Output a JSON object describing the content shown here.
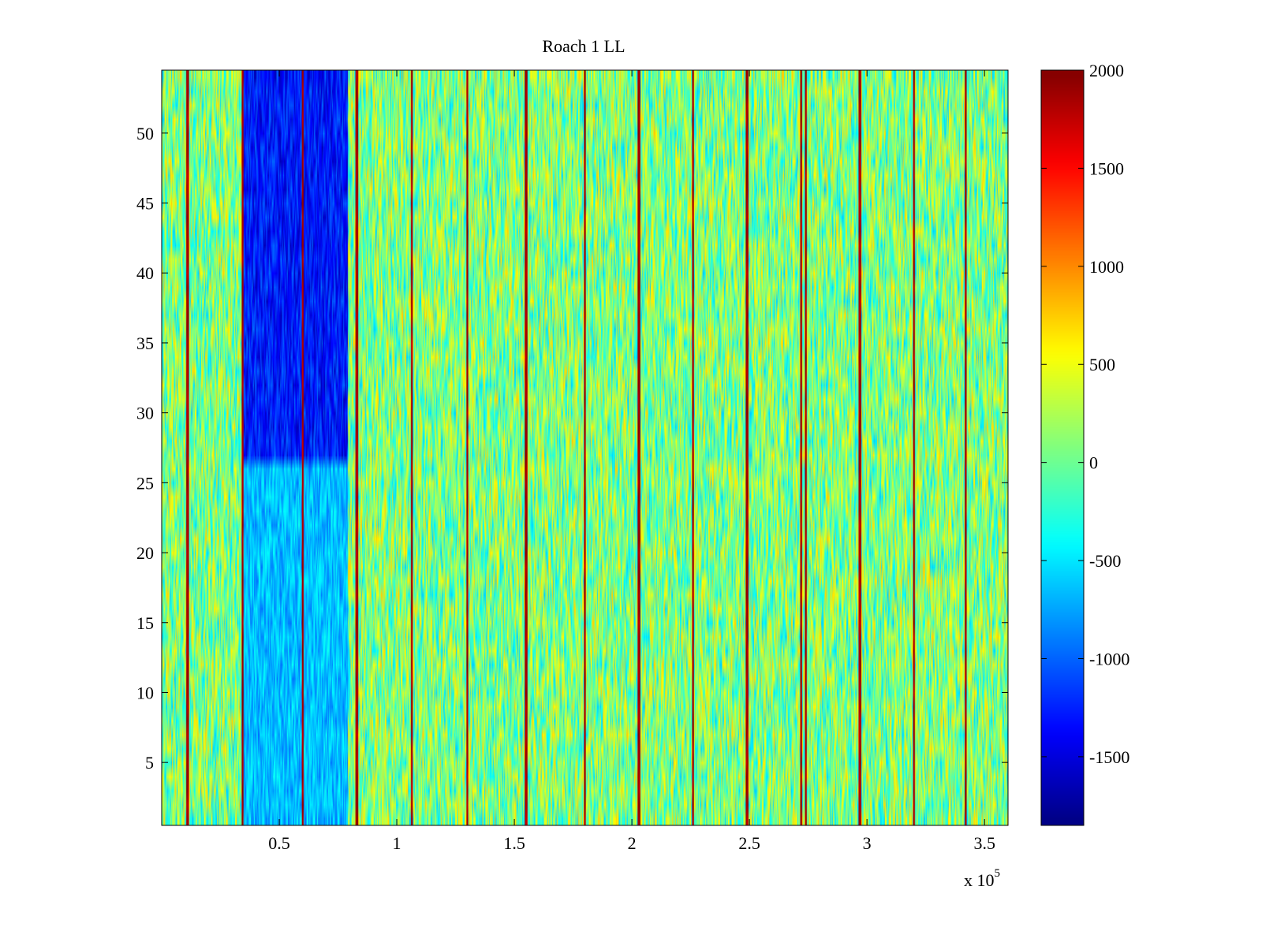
{
  "chart_data": {
    "type": "heatmap",
    "title": "Roach 1 LL",
    "xlabel": "",
    "ylabel": "",
    "x_exponent_label": "x 10",
    "x_exponent_power": "5",
    "x_tick_labels": [
      "0.5",
      "1",
      "1.5",
      "2",
      "2.5",
      "3",
      "3.5"
    ],
    "x_tick_values": [
      50000,
      100000,
      150000,
      200000,
      250000,
      300000,
      350000
    ],
    "y_tick_labels": [
      "5",
      "10",
      "15",
      "20",
      "25",
      "30",
      "35",
      "40",
      "45",
      "50"
    ],
    "y_tick_values": [
      5,
      10,
      15,
      20,
      25,
      30,
      35,
      40,
      45,
      50
    ],
    "xlim": [
      0,
      360000
    ],
    "ylim": [
      0.5,
      54.5
    ],
    "rows": 54,
    "grid": false,
    "colormap": "jet",
    "colorbar": {
      "position": "right",
      "range": [
        -1850,
        2000
      ],
      "tick_labels": [
        "2000",
        "1500",
        "1000",
        "500",
        "0",
        "-500",
        "-1000",
        "-1500"
      ],
      "tick_values": [
        2000,
        1500,
        1000,
        500,
        0,
        -500,
        -1000,
        -1500
      ]
    },
    "value_pattern": {
      "background_mean": 50,
      "noise_range": [
        -650,
        700
      ],
      "high_value_lines_x": [
        11000,
        34500,
        60000,
        83000,
        106500,
        130000,
        155000,
        180000,
        203000,
        226000,
        249000,
        272000,
        274000,
        297000,
        320000,
        342000
      ],
      "high_value_line_level": 2000,
      "low_value_region": {
        "x": [
          34000,
          79000
        ],
        "y": [
          27,
          54.5
        ],
        "level": -1300
      },
      "medium_low_region": {
        "x": [
          34000,
          79000
        ],
        "y": [
          0.5,
          27
        ],
        "level": -650
      }
    }
  }
}
